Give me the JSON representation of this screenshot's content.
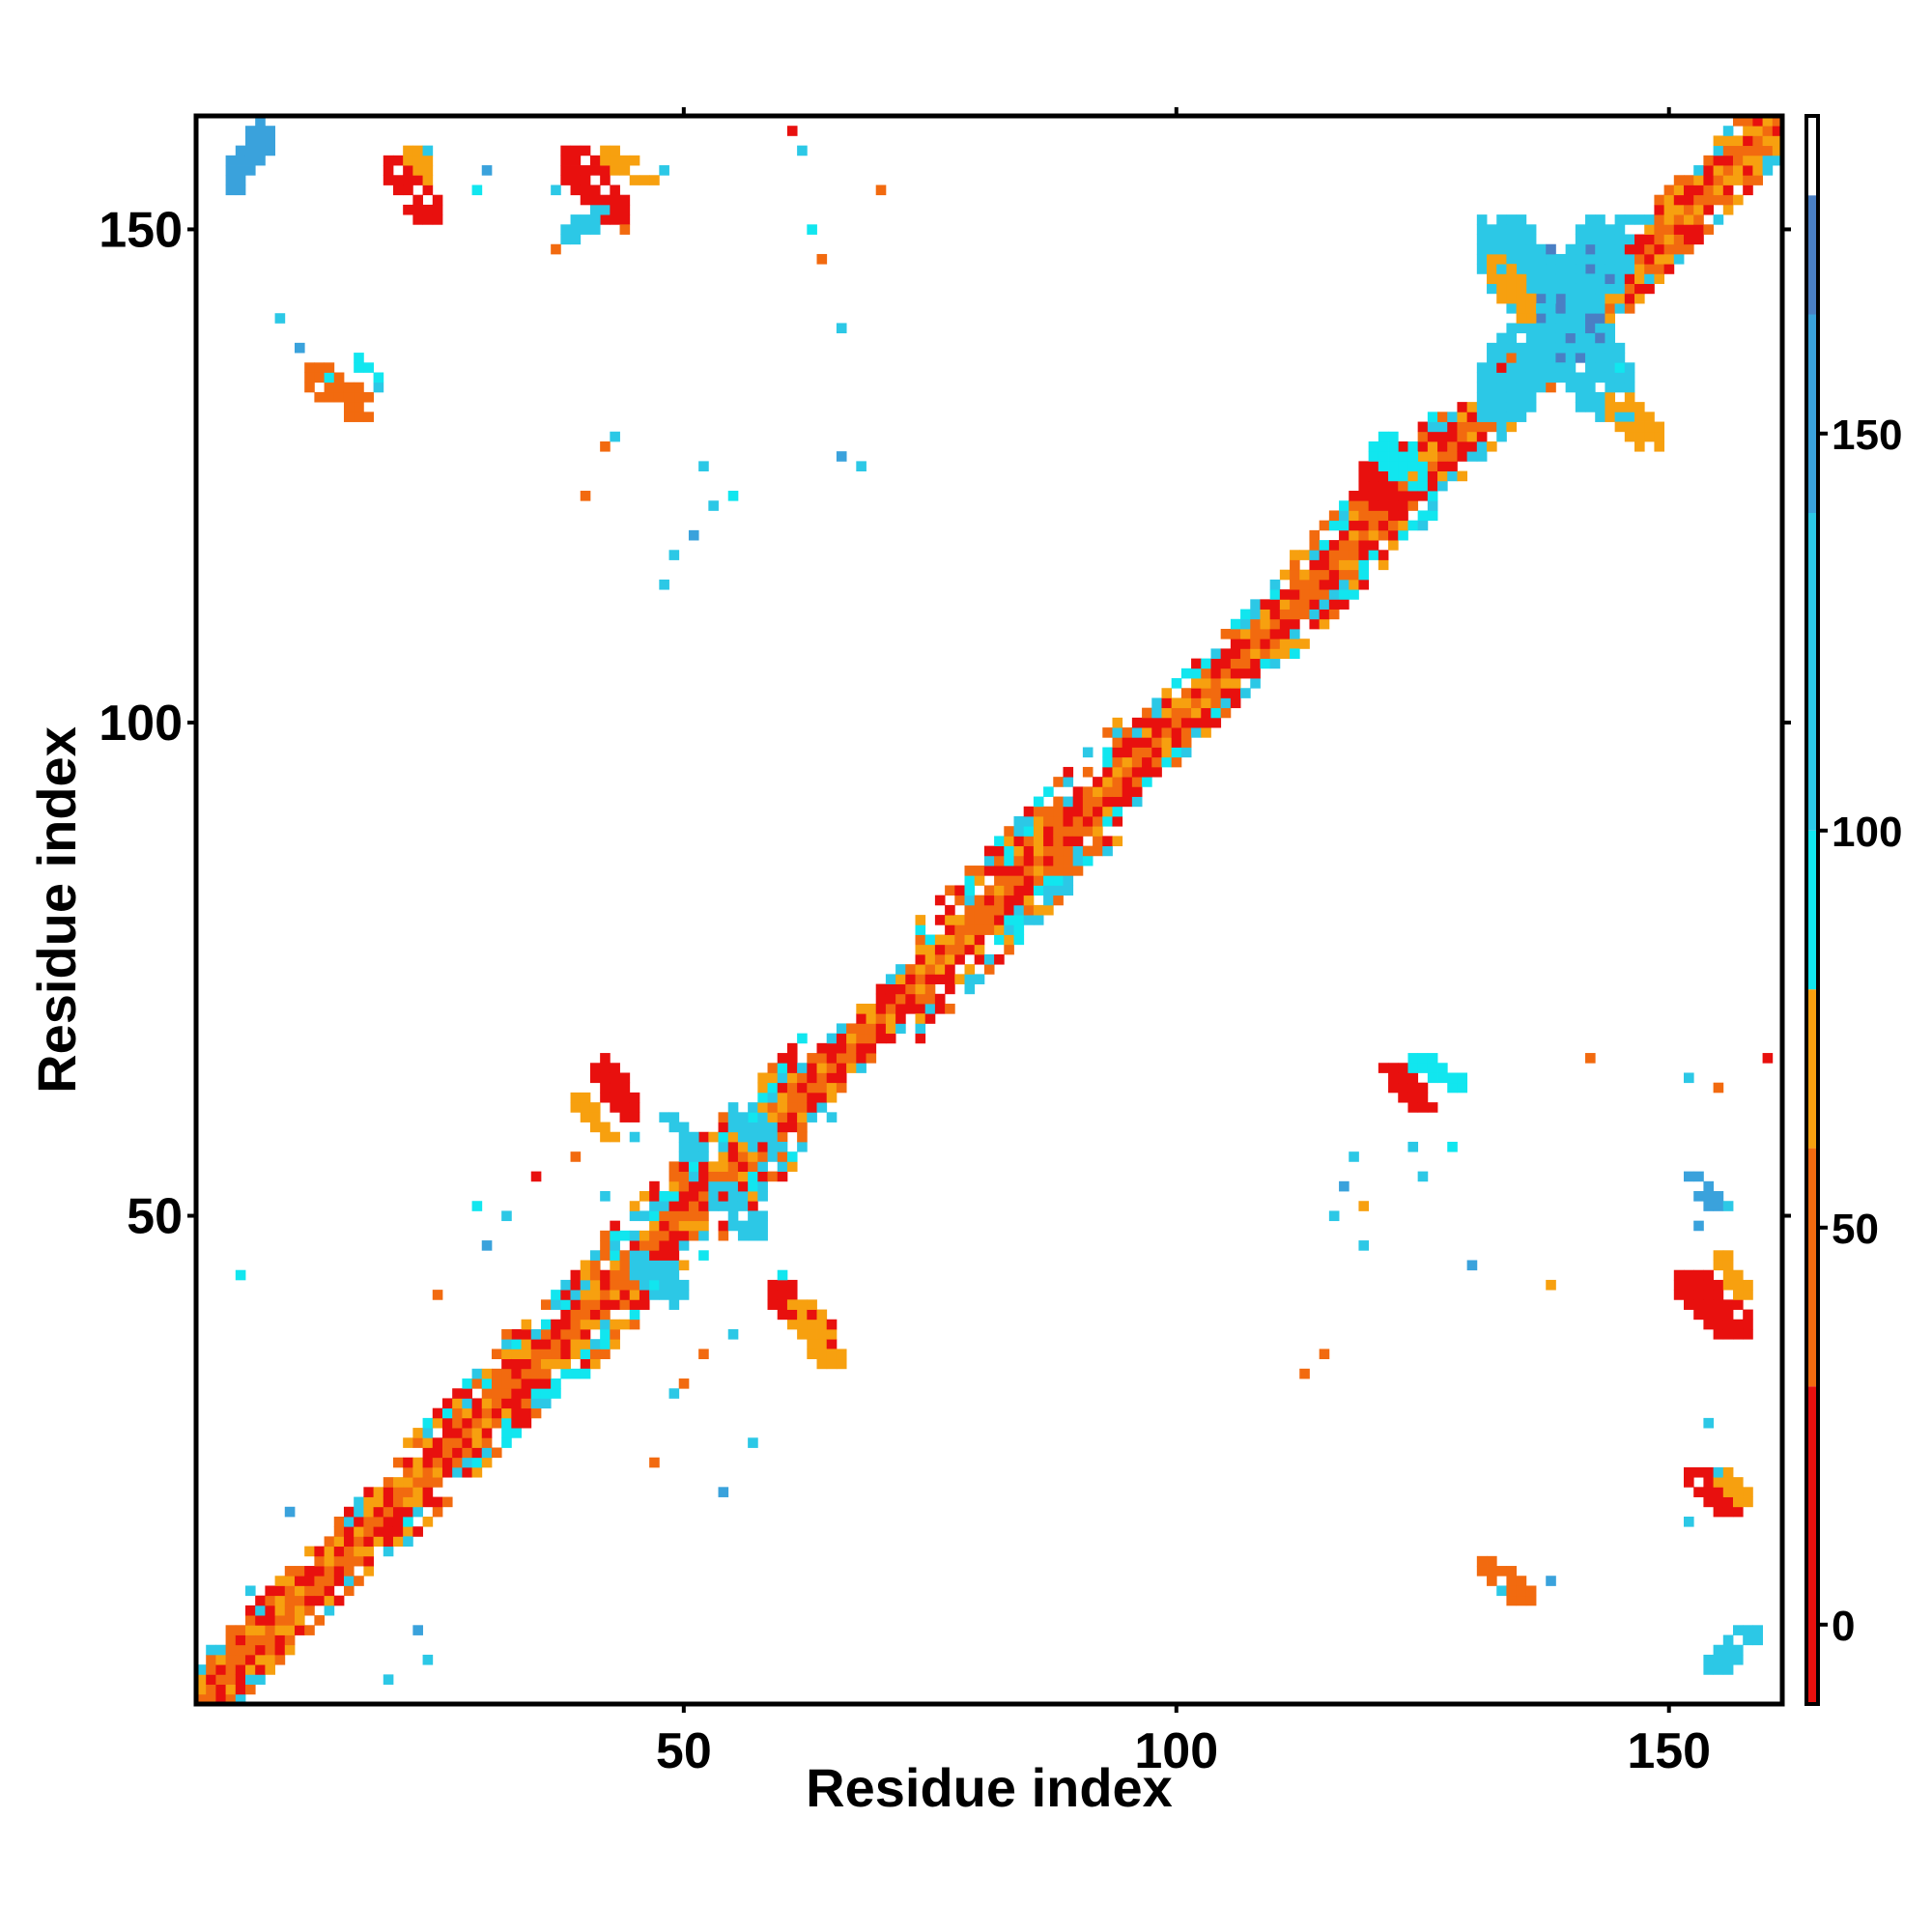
{
  "chart_data": {
    "type": "heatmap",
    "title": "",
    "xlabel": "Residue index",
    "ylabel": "Residue index",
    "xlim": [
      1,
      161
    ],
    "ylim": [
      1,
      161
    ],
    "x_ticks": [
      "50",
      "100",
      "150"
    ],
    "y_ticks": [
      "50",
      "100",
      "150"
    ],
    "grid": false,
    "colorbar": {
      "placement": "right",
      "ticks": [
        "0",
        "50",
        "100",
        "150"
      ],
      "range": [
        -10,
        190
      ],
      "bands": [
        {
          "from": -10,
          "to": 30,
          "color": "#e8100e"
        },
        {
          "from": 30,
          "to": 60,
          "color": "#f26a0f"
        },
        {
          "from": 60,
          "to": 80,
          "color": "#f7a00f"
        },
        {
          "from": 80,
          "to": 100,
          "color": "#11e6ef"
        },
        {
          "from": 100,
          "to": 140,
          "color": "#2cc8e6"
        },
        {
          "from": 140,
          "to": 165,
          "color": "#3aa2dc"
        },
        {
          "from": 165,
          "to": 180,
          "color": "#4a7fc4"
        },
        {
          "from": 180,
          "to": 190,
          "color": "#ffffff"
        }
      ]
    },
    "cell_colors": [
      "#e8100e",
      "#f26a0f",
      "#f7a00f",
      "#11e6ef",
      "#2cc8e6",
      "#3aa2dc",
      "#4a7fc4"
    ],
    "cell_value_levels": [
      10,
      45,
      70,
      90,
      120,
      150,
      172
    ],
    "diagonal_segments": [
      {
        "from": 1,
        "to": 22,
        "band": 4,
        "colors": [
          0,
          1,
          2,
          4
        ]
      },
      {
        "from": 22,
        "to": 40,
        "band": 5,
        "colors": [
          0,
          1,
          2,
          3,
          4
        ]
      },
      {
        "from": 40,
        "to": 62,
        "band": 6,
        "colors": [
          0,
          1,
          2,
          3,
          4
        ]
      },
      {
        "from": 62,
        "to": 74,
        "band": 3,
        "colors": [
          0,
          1,
          2,
          4
        ]
      },
      {
        "from": 74,
        "to": 94,
        "band": 6,
        "colors": [
          0,
          1,
          2,
          3,
          4
        ]
      },
      {
        "from": 94,
        "to": 112,
        "band": 4,
        "colors": [
          0,
          1,
          2,
          3,
          4
        ]
      },
      {
        "from": 112,
        "to": 126,
        "band": 5,
        "colors": [
          0,
          1,
          2,
          3,
          4
        ]
      },
      {
        "from": 126,
        "to": 161,
        "band": 4,
        "colors": [
          0,
          1,
          2,
          4
        ]
      }
    ],
    "contact_patches": [
      {
        "i": [
          59,
          65
        ],
        "j": [
          37,
          43
        ],
        "orientation": "anti",
        "color": 0
      },
      {
        "i": [
          61,
          66
        ],
        "j": [
          35,
          41
        ],
        "orientation": "anti",
        "color": 2
      },
      {
        "i": [
          41,
          45
        ],
        "j": [
          60,
          66
        ],
        "orientation": "anti",
        "color": 0
      },
      {
        "i": [
          39,
          43
        ],
        "j": [
          58,
          62
        ],
        "orientation": "anti",
        "color": 2
      },
      {
        "i": [
          55,
          60
        ],
        "j": [
          56,
          61
        ],
        "orientation": "anti",
        "color": 4
      },
      {
        "i": [
          45,
          50
        ],
        "j": [
          41,
          46
        ],
        "orientation": "anti",
        "color": 4
      },
      {
        "i": [
          53,
          58
        ],
        "j": [
          48,
          53
        ],
        "orientation": "anti",
        "color": 4
      },
      {
        "i": [
          48,
          52
        ],
        "j": [
          56,
          60
        ],
        "orientation": "anti",
        "color": 4
      },
      {
        "i": [
          121,
          126
        ],
        "j": [
          61,
          65
        ],
        "orientation": "anti",
        "color": 0
      },
      {
        "i": [
          124,
          129
        ],
        "j": [
          63,
          66
        ],
        "orientation": "anti",
        "color": 3
      },
      {
        "i": [
          119,
          123
        ],
        "j": [
          121,
          126
        ],
        "orientation": "anti",
        "color": 0
      },
      {
        "i": [
          120,
          125
        ],
        "j": [
          124,
          129
        ],
        "orientation": "anti",
        "color": 3
      },
      {
        "i": [
          151,
          158
        ],
        "j": [
          38,
          44
        ],
        "orientation": "anti",
        "color": 0
      },
      {
        "i": [
          155,
          158
        ],
        "j": [
          42,
          46
        ],
        "orientation": "anti",
        "color": 2
      },
      {
        "i": [
          152,
          155
        ],
        "j": [
          51,
          54
        ],
        "orientation": "anti",
        "color": 5
      },
      {
        "i": [
          152,
          157
        ],
        "j": [
          20,
          24
        ],
        "orientation": "anti",
        "color": 0
      },
      {
        "i": [
          155,
          158
        ],
        "j": [
          21,
          24
        ],
        "orientation": "anti",
        "color": 2
      },
      {
        "i": [
          131,
          136
        ],
        "j": [
          11,
          15
        ],
        "orientation": "anti",
        "color": 1
      },
      {
        "i": [
          154,
          159
        ],
        "j": [
          4,
          8
        ],
        "orientation": "para",
        "color": 4
      },
      {
        "i": [
          20,
          25
        ],
        "j": [
          151,
          157
        ],
        "orientation": "anti",
        "color": 0
      },
      {
        "i": [
          22,
          25
        ],
        "j": [
          155,
          158
        ],
        "orientation": "anti",
        "color": 2
      },
      {
        "i": [
          38,
          44
        ],
        "j": [
          151,
          158
        ],
        "orientation": "anti",
        "color": 0
      },
      {
        "i": [
          42,
          46
        ],
        "j": [
          155,
          158
        ],
        "orientation": "anti",
        "color": 2
      },
      {
        "i": [
          38,
          42
        ],
        "j": [
          149,
          152
        ],
        "orientation": "para",
        "color": 4
      },
      {
        "i": [
          4,
          8
        ],
        "j": [
          154,
          161
        ],
        "orientation": "para",
        "color": 5
      },
      {
        "i": [
          12,
          18
        ],
        "j": [
          131,
          136
        ],
        "orientation": "anti",
        "color": 1
      },
      {
        "i": [
          17,
          19
        ],
        "j": [
          134,
          137
        ],
        "orientation": "anti",
        "color": 3
      },
      {
        "i": [
          136,
          144
        ],
        "j": [
          136,
          148
        ],
        "orientation": "cross",
        "color": 6
      },
      {
        "i": [
          131,
          146
        ],
        "j": [
          131,
          151
        ],
        "orientation": "cross",
        "color": 4
      },
      {
        "i": [
          132,
          136
        ],
        "j": [
          141,
          147
        ],
        "orientation": "anti",
        "color": 2
      },
      {
        "i": [
          144,
          149
        ],
        "j": [
          128,
          133
        ],
        "orientation": "anti",
        "color": 2
      }
    ],
    "scattered_contacts": [
      [
        5,
        44,
        3
      ],
      [
        6,
        12,
        4
      ],
      [
        10,
        20,
        5
      ],
      [
        23,
        8,
        5
      ],
      [
        25,
        42,
        1
      ],
      [
        32,
        38,
        1
      ],
      [
        30,
        47,
        5
      ],
      [
        32,
        50,
        4
      ],
      [
        29,
        51,
        3
      ],
      [
        35,
        54,
        0
      ],
      [
        39,
        56,
        1
      ],
      [
        42,
        52,
        4
      ],
      [
        45,
        58,
        4
      ],
      [
        50,
        33,
        1
      ],
      [
        52,
        36,
        1
      ],
      [
        55,
        38,
        4
      ],
      [
        54,
        22,
        5
      ],
      [
        47,
        25,
        1
      ],
      [
        49,
        32,
        4
      ],
      [
        58,
        53,
        4
      ],
      [
        60,
        44,
        3
      ],
      [
        65,
        60,
        4
      ],
      [
        57,
        27,
        4
      ],
      [
        64,
        147,
        1
      ],
      [
        61,
        160,
        0
      ],
      [
        62,
        158,
        4
      ],
      [
        63,
        150,
        3
      ],
      [
        70,
        154,
        1
      ],
      [
        66,
        140,
        4
      ],
      [
        66,
        127,
        5
      ],
      [
        53,
        122,
        4
      ],
      [
        51,
        119,
        5
      ],
      [
        49,
        117,
        4
      ],
      [
        48,
        114,
        4
      ],
      [
        55,
        123,
        3
      ],
      [
        42,
        128,
        1
      ],
      [
        43,
        129,
        4
      ],
      [
        37,
        148,
        1
      ],
      [
        37,
        154,
        4
      ],
      [
        30,
        156,
        5
      ],
      [
        24,
        158,
        4
      ],
      [
        40,
        123,
        1
      ],
      [
        52,
        126,
        4
      ],
      [
        68,
        126,
        4
      ],
      [
        117,
        53,
        5
      ],
      [
        118,
        56,
        4
      ],
      [
        124,
        57,
        4
      ],
      [
        116,
        50,
        4
      ],
      [
        119,
        51,
        2
      ],
      [
        125,
        54,
        4
      ],
      [
        128,
        57,
        3
      ],
      [
        119,
        47,
        4
      ],
      [
        113,
        34,
        1
      ],
      [
        115,
        36,
        1
      ],
      [
        130,
        45,
        5
      ],
      [
        138,
        43,
        2
      ],
      [
        152,
        64,
        4
      ],
      [
        155,
        63,
        1
      ],
      [
        160,
        66,
        0
      ],
      [
        142,
        66,
        1
      ],
      [
        153,
        49,
        5
      ],
      [
        156,
        51,
        4
      ],
      [
        154,
        29,
        4
      ],
      [
        155,
        24,
        4
      ],
      [
        152,
        19,
        4
      ],
      [
        133,
        12,
        4
      ],
      [
        138,
        13,
        5
      ],
      [
        139,
        145,
        4
      ],
      [
        145,
        136,
        3
      ],
      [
        20,
        3,
        4
      ],
      [
        24,
        5,
        4
      ],
      [
        9,
        141,
        4
      ],
      [
        11,
        138,
        5
      ],
      [
        14,
        135,
        3
      ],
      [
        19,
        134,
        4
      ],
      [
        29,
        154,
        3
      ],
      [
        44,
        150,
        1
      ],
      [
        47,
        155,
        2
      ],
      [
        48,
        156,
        4
      ]
    ]
  }
}
